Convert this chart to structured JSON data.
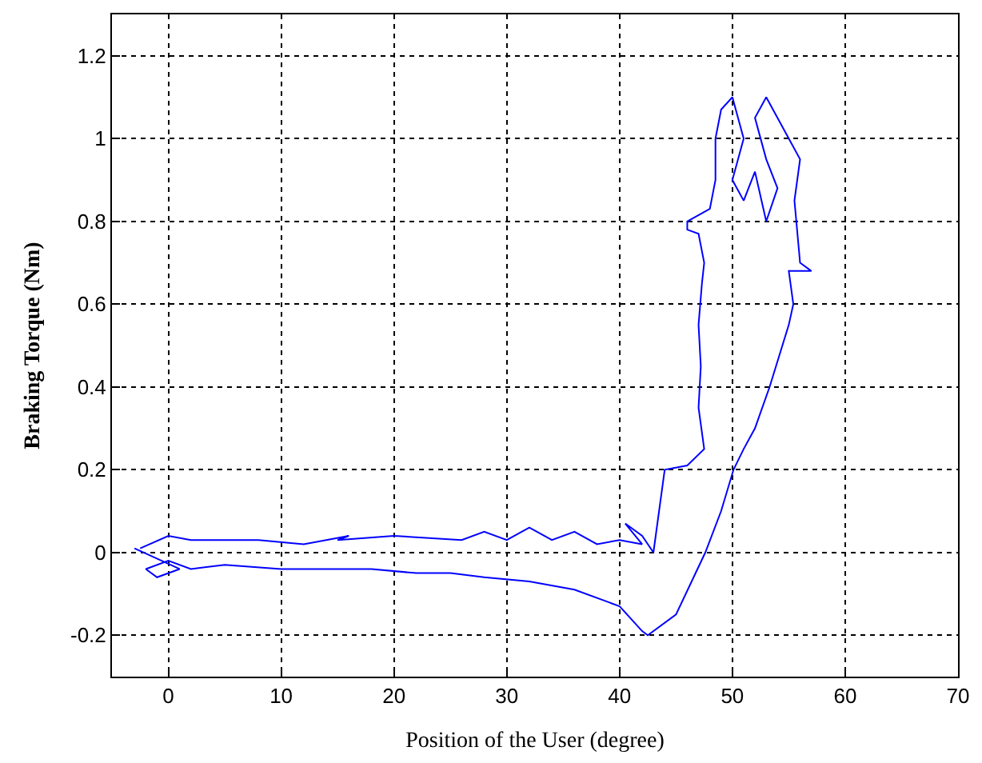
{
  "chart_data": {
    "type": "line",
    "xlabel": "Position of the User (degree)",
    "ylabel": "Braking Torque (Nm)",
    "x": [
      -2.5,
      0,
      2,
      8,
      12,
      16,
      15,
      20,
      26,
      28,
      30,
      32,
      34,
      36,
      38,
      40,
      42,
      40.5,
      42,
      43,
      43.5,
      44,
      46,
      47.5,
      47,
      47.2,
      47,
      47.3,
      47.5,
      47,
      46,
      46,
      48,
      48.5,
      48.5,
      49,
      50,
      51,
      50,
      51,
      52,
      53,
      54,
      53,
      52,
      53,
      55,
      56,
      55.5,
      56,
      57,
      55,
      55.4,
      55,
      53.3,
      52,
      51,
      50.1,
      49,
      47.6,
      45,
      42.5,
      42,
      40,
      36,
      32,
      28,
      25,
      22,
      18,
      10,
      5,
      2,
      0,
      -2,
      -1,
      1,
      -3
    ],
    "series": [
      {
        "color": "#0000ff",
        "values": [
          0.01,
          0.04,
          0.03,
          0.03,
          0.02,
          0.04,
          0.03,
          0.04,
          0.03,
          0.05,
          0.03,
          0.06,
          0.03,
          0.05,
          0.02,
          0.03,
          0.02,
          0.07,
          0.04,
          0.0,
          0.1,
          0.2,
          0.21,
          0.25,
          0.35,
          0.45,
          0.55,
          0.65,
          0.7,
          0.77,
          0.78,
          0.8,
          0.83,
          0.9,
          1.0,
          1.07,
          1.1,
          1.0,
          0.9,
          0.85,
          0.92,
          0.8,
          0.88,
          0.95,
          1.05,
          1.1,
          1.0,
          0.95,
          0.85,
          0.7,
          0.68,
          0.68,
          0.6,
          0.55,
          0.4,
          0.3,
          0.25,
          0.2,
          0.1,
          0.0,
          -0.15,
          -0.2,
          -0.19,
          -0.13,
          -0.09,
          -0.07,
          -0.06,
          -0.05,
          -0.05,
          -0.04,
          -0.04,
          -0.03,
          -0.04,
          -0.02,
          -0.04,
          -0.06,
          -0.04,
          0.01
        ]
      }
    ],
    "xlim": [
      -5,
      70
    ],
    "xticks": [
      0,
      10,
      20,
      30,
      40,
      50,
      60,
      70
    ],
    "ylim": [
      -0.3,
      1.3
    ],
    "yticks": [
      {
        "value": -0.2,
        "label": "-0.2"
      },
      0,
      {
        "value": 0.2,
        "label": "0.2"
      },
      {
        "value": 0.4,
        "label": "0.4"
      },
      {
        "value": 0.6,
        "label": "0.6"
      },
      {
        "value": 0.8,
        "label": "0.8"
      },
      1,
      {
        "value": 1.2,
        "label": "1.2"
      }
    ],
    "grid": true,
    "marker": "none",
    "line_style": "solid"
  }
}
